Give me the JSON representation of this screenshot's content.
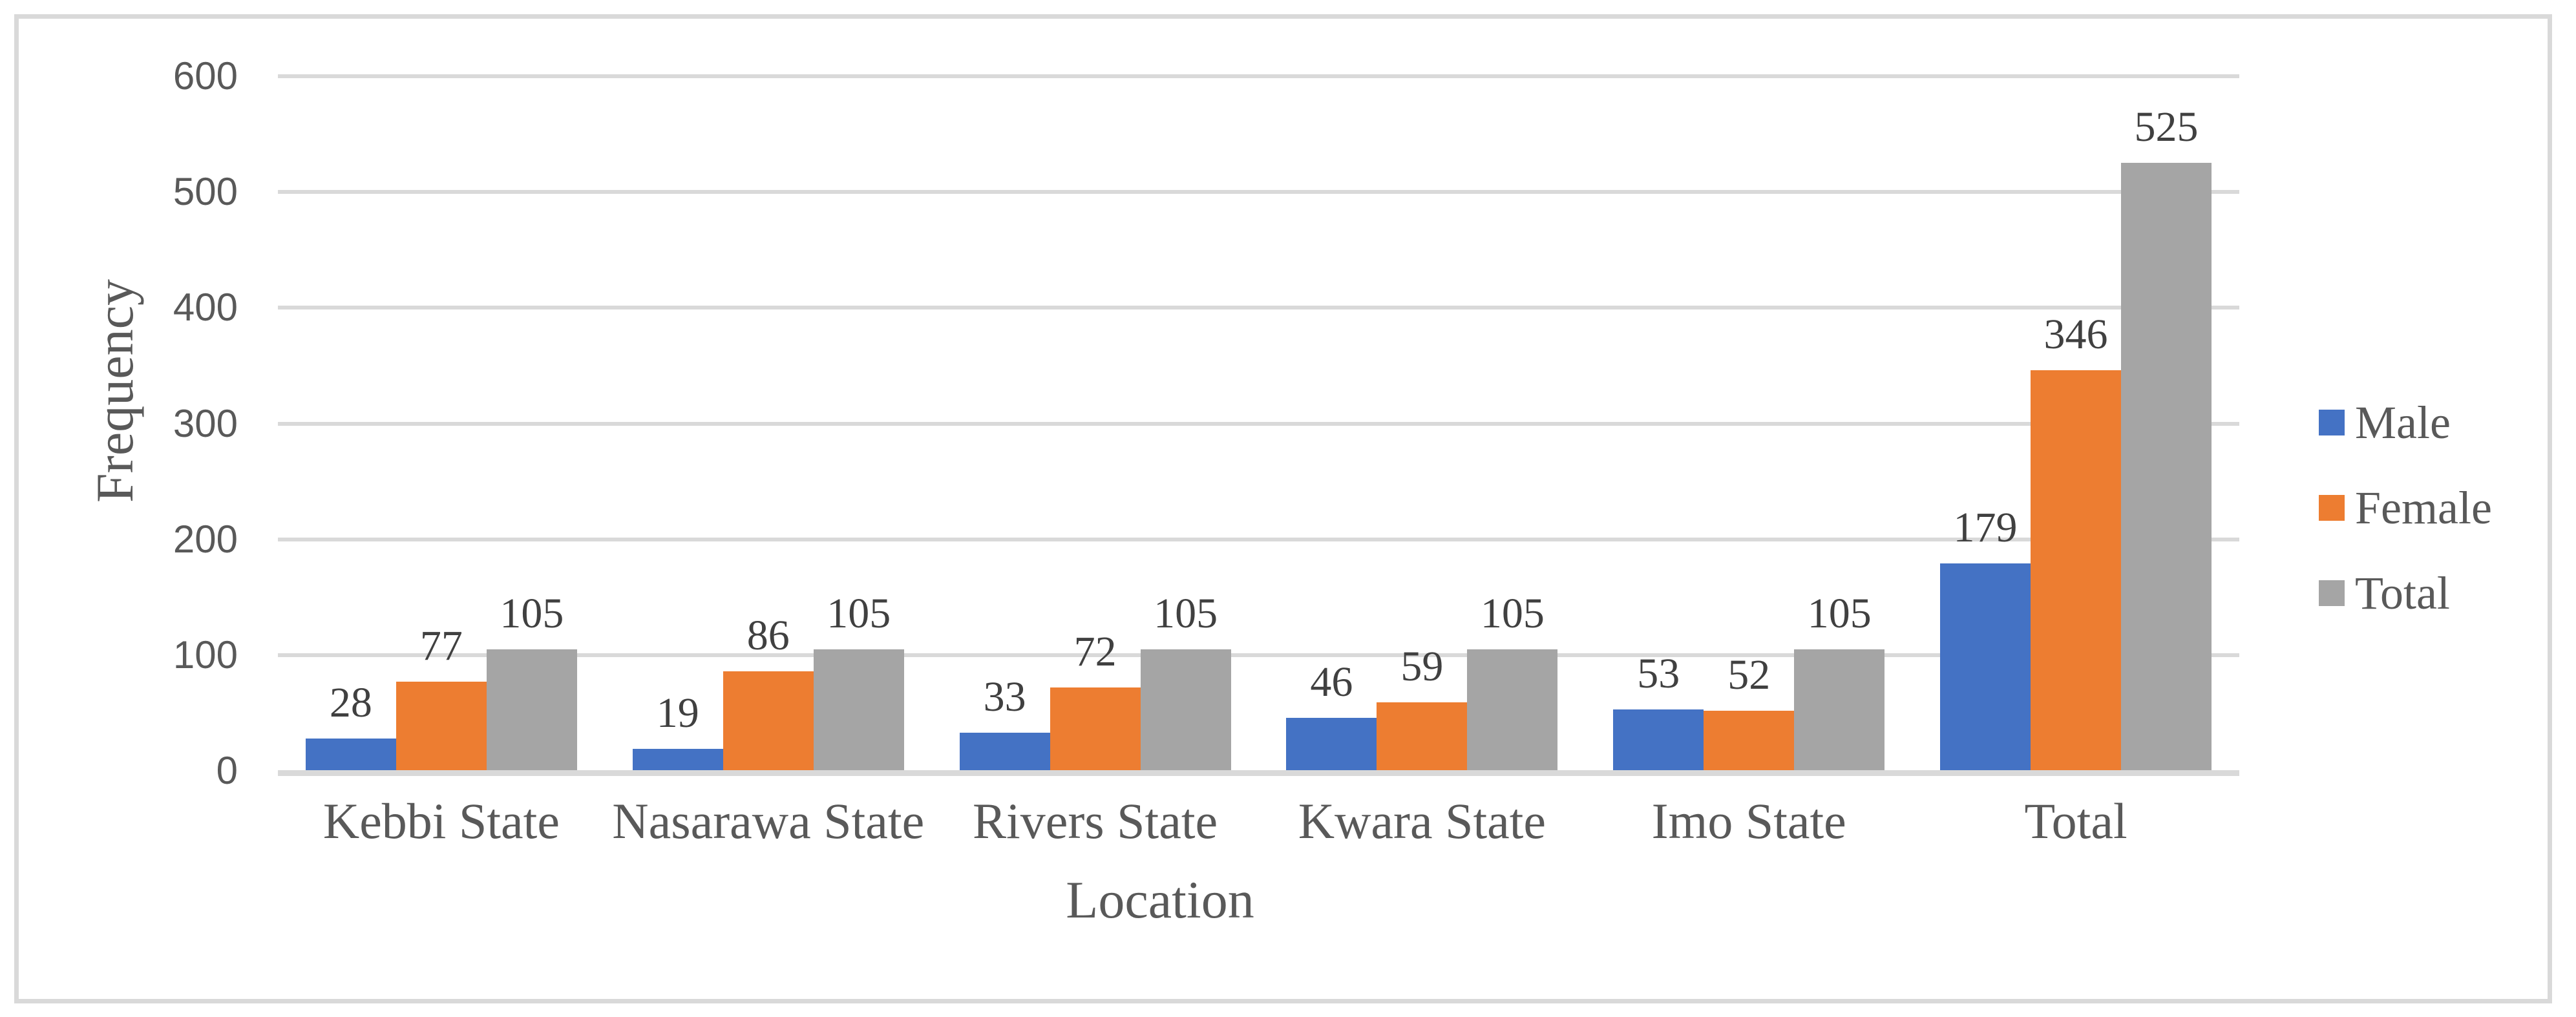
{
  "chart_data": {
    "type": "bar",
    "title": "",
    "xlabel": "Location",
    "ylabel": "Frequency",
    "categories": [
      "Kebbi State",
      "Nasarawa State",
      "Rivers State",
      "Kwara State",
      "Imo State",
      "Total"
    ],
    "series": [
      {
        "name": "Male",
        "color": "#4472C4",
        "values": [
          28,
          19,
          33,
          46,
          53,
          179
        ]
      },
      {
        "name": "Female",
        "color": "#ED7D31",
        "values": [
          77,
          86,
          72,
          59,
          52,
          346
        ]
      },
      {
        "name": "Total",
        "color": "#A5A5A5",
        "values": [
          105,
          105,
          105,
          105,
          105,
          525
        ]
      }
    ],
    "ylim": [
      0,
      600
    ],
    "yticks": [
      0,
      100,
      200,
      300,
      400,
      500,
      600
    ],
    "grid": true,
    "data_labels": true,
    "legend_position": "right"
  },
  "colors": {
    "background": "#FFFFFF",
    "frame": "#D9D9D9",
    "gridline": "#D9D9D9",
    "axis_line": "#D9D9D9",
    "tick_text": "#595959",
    "axis_title_text": "#595959",
    "data_label_text": "#404040"
  }
}
